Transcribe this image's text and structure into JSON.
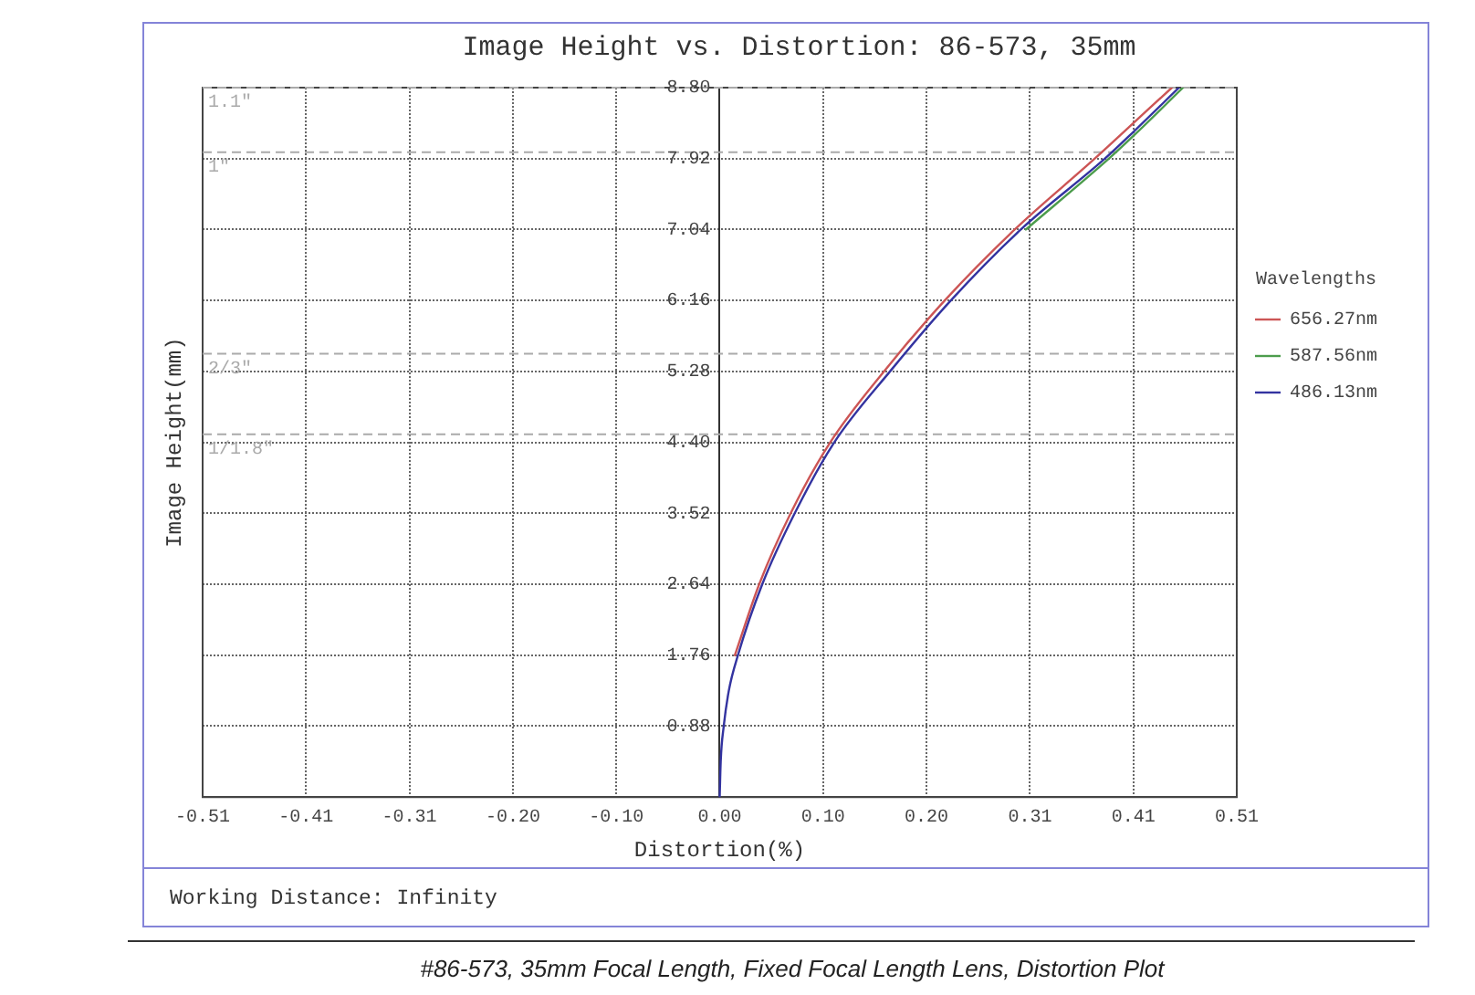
{
  "chart_data": {
    "type": "line",
    "title": "Image Height vs. Distortion: 86-573, 35mm",
    "xlabel": "Distortion(%)",
    "ylabel": "Image Height(mm)",
    "legend_title": "Wavelengths",
    "legend": "right",
    "grid": true,
    "marker": "none",
    "xlim": [
      -0.51,
      0.51
    ],
    "xticks": [
      -0.51,
      {
        "value": -0.408,
        "label": "-0.41"
      },
      {
        "value": -0.306,
        "label": "-0.31"
      },
      {
        "value": -0.204,
        "label": "-0.20"
      },
      {
        "value": -0.102,
        "label": "-0.10"
      },
      {
        "value": 0,
        "label": "0.00"
      },
      {
        "value": 0.102,
        "label": "0.10"
      },
      {
        "value": 0.204,
        "label": "0.20"
      },
      {
        "value": 0.306,
        "label": "0.31"
      },
      {
        "value": 0.408,
        "label": "0.41"
      },
      0.51
    ],
    "ylim": [
      0,
      8.8
    ],
    "yticks": [
      0.88,
      1.76,
      2.64,
      3.52,
      {
        "value": 4.4,
        "label": "4.40"
      },
      5.28,
      6.16,
      7.04,
      7.92,
      {
        "value": 8.8,
        "label": "8.80"
      }
    ],
    "series": [
      {
        "name": "656.27nm",
        "color": "#cc5555",
        "x": [
          0.015,
          0.039,
          0.07,
          0.109,
          0.162,
          0.222,
          0.291,
          0.37,
          0.408,
          0.446
        ],
        "values": [
          1.76,
          2.64,
          3.52,
          4.4,
          5.28,
          6.16,
          7.04,
          7.92,
          8.36,
          8.8
        ]
      },
      {
        "name": "587.56nm",
        "color": "#4c9c4c",
        "x": [
          0.302,
          0.384,
          0.408,
          0.457
        ],
        "values": [
          7.04,
          7.92,
          8.2,
          8.8
        ]
      },
      {
        "name": "486.13nm",
        "color": "#3333a0",
        "x": [
          0,
          0.001,
          0.004,
          0.009,
          0.018,
          0.042,
          0.074,
          0.113,
          0.168,
          0.228,
          0.297,
          0.38,
          0.408,
          0.453
        ],
        "values": [
          0,
          0.44,
          0.88,
          1.32,
          1.76,
          2.64,
          3.52,
          4.4,
          5.28,
          6.16,
          7.04,
          7.92,
          8.25,
          8.8
        ]
      }
    ],
    "ref_lines": [
      {
        "axis": "y",
        "value": 8.8,
        "color": "#aaaaaa",
        "line_style": "dashed"
      },
      {
        "axis": "y",
        "value": 8.0,
        "color": "#aaaaaa",
        "line_style": "dashed"
      },
      {
        "axis": "y",
        "value": 5.5,
        "color": "#aaaaaa",
        "line_style": "dashed"
      },
      {
        "axis": "y",
        "value": 4.5,
        "color": "#aaaaaa",
        "line_style": "dashed"
      }
    ],
    "annotations": [
      {
        "text": "1.1\"",
        "y": 8.8
      },
      {
        "text": "1\"",
        "y": 8.0
      },
      {
        "text": "2/3\"",
        "y": 5.5
      },
      {
        "text": "1/1.8\"",
        "y": 4.5
      },
      "Working Distance: Infinity",
      "#86-573, 35mm Focal Length, Fixed Focal Length Lens, Distortion Plot"
    ]
  }
}
